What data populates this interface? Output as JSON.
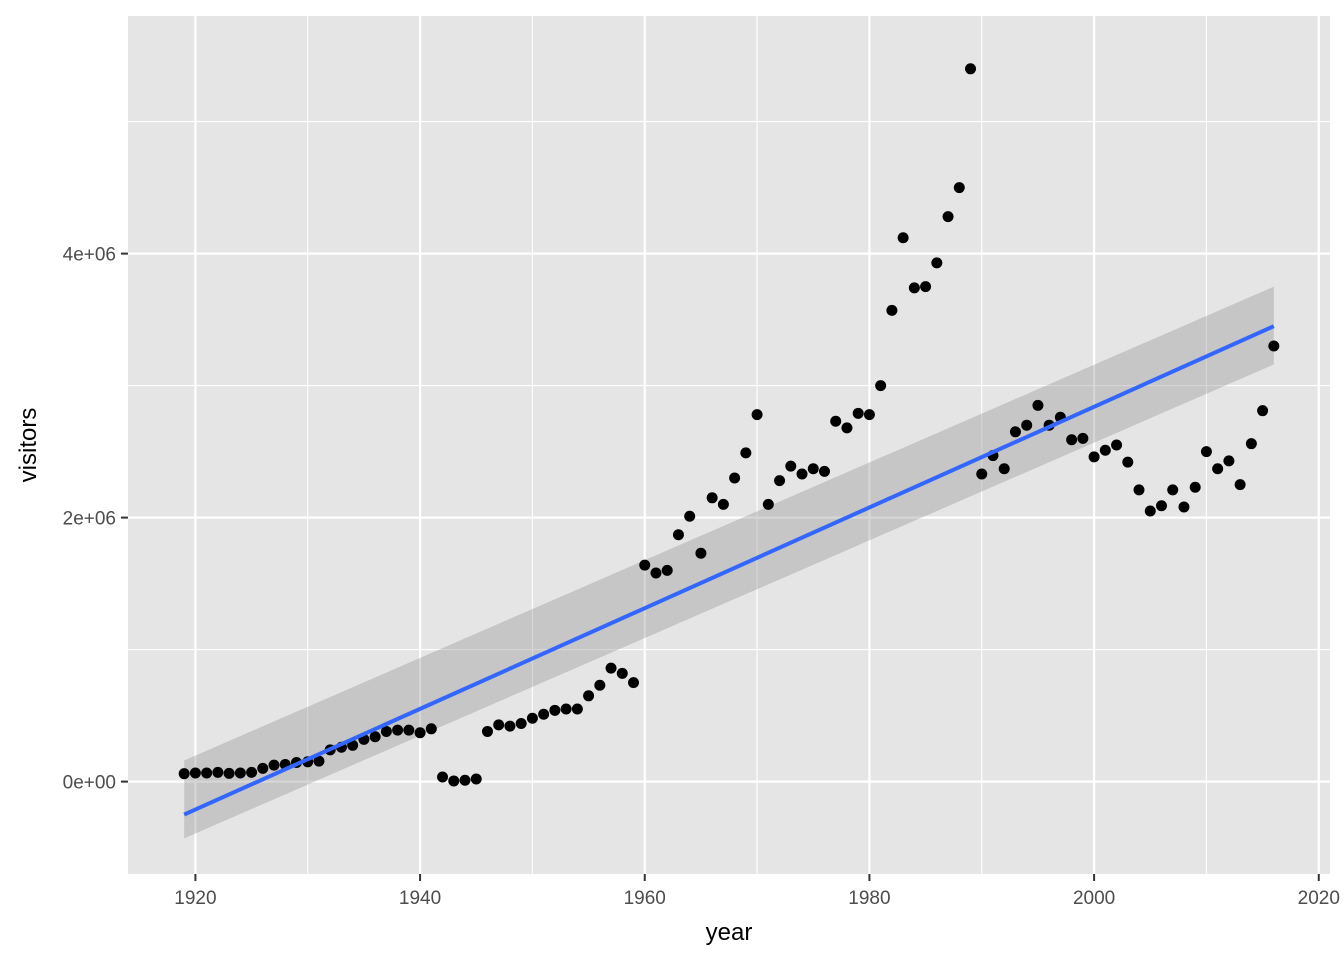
{
  "chart_data": {
    "type": "scatter",
    "title": "",
    "xlabel": "year",
    "ylabel": "visitors",
    "xlim": [
      1914,
      2021
    ],
    "ylim": [
      -700000,
      5800000
    ],
    "x_ticks": [
      1920,
      1940,
      1960,
      1980,
      2000,
      2020
    ],
    "x_tick_labels": [
      "1920",
      "1940",
      "1960",
      "1980",
      "2000",
      "2020"
    ],
    "y_ticks": [
      0,
      2000000,
      4000000
    ],
    "y_tick_labels": [
      "0e+00",
      "2e+06",
      "4e+06"
    ],
    "grid": true,
    "legend": "none",
    "colors": {
      "panel": "#e5e5e5",
      "grid": "#ffffff",
      "points": "#000000",
      "fit_line": "#3366ff",
      "ribbon": "#999999"
    },
    "x": [
      1919,
      1920,
      1921,
      1922,
      1923,
      1924,
      1925,
      1926,
      1927,
      1928,
      1929,
      1930,
      1931,
      1932,
      1933,
      1934,
      1935,
      1936,
      1937,
      1938,
      1939,
      1940,
      1941,
      1942,
      1943,
      1944,
      1945,
      1946,
      1947,
      1948,
      1949,
      1950,
      1951,
      1952,
      1953,
      1954,
      1955,
      1956,
      1957,
      1958,
      1959,
      1960,
      1961,
      1962,
      1963,
      1964,
      1965,
      1966,
      1967,
      1968,
      1969,
      1970,
      1971,
      1972,
      1973,
      1974,
      1975,
      1976,
      1977,
      1978,
      1979,
      1980,
      1981,
      1982,
      1983,
      1984,
      1985,
      1986,
      1987,
      1988,
      1989,
      1990,
      1991,
      1992,
      1993,
      1994,
      1995,
      1996,
      1997,
      1998,
      1999,
      2000,
      2001,
      2002,
      2003,
      2004,
      2005,
      2006,
      2007,
      2008,
      2009,
      2010,
      2011,
      2012,
      2013,
      2014,
      2015,
      2016
    ],
    "y": [
      60000,
      65000,
      65000,
      70000,
      62000,
      65000,
      70000,
      100000,
      125000,
      130000,
      145000,
      150000,
      155000,
      240000,
      260000,
      275000,
      320000,
      340000,
      380000,
      390000,
      390000,
      370000,
      400000,
      35000,
      5000,
      10000,
      20000,
      380000,
      430000,
      420000,
      440000,
      480000,
      510000,
      540000,
      550000,
      550000,
      650000,
      730000,
      860000,
      820000,
      750000,
      1640000,
      1580000,
      1600000,
      1870000,
      2010000,
      1730000,
      2150000,
      2100000,
      2300000,
      2490000,
      2780000,
      2100000,
      2280000,
      2390000,
      2330000,
      2370000,
      2350000,
      2730000,
      2680000,
      2790000,
      2780000,
      3000000,
      3570000,
      4120000,
      3740000,
      3750000,
      3930000,
      4280000,
      4500000,
      5400000,
      2330000,
      2470000,
      2370000,
      2650000,
      2700000,
      2850000,
      2700000,
      2760000,
      2590000,
      2600000,
      2460000,
      2510000,
      2550000,
      2420000,
      2210000,
      2050000,
      2090000,
      2210000,
      2080000,
      2230000,
      2500000,
      2370000,
      2430000,
      2250000,
      2560000,
      2810000,
      3300000
    ],
    "fit": {
      "method": "lm",
      "x": [
        1919,
        2016
      ],
      "y": [
        -250000,
        3450000
      ],
      "se_lower": [
        -430000,
        3160000
      ],
      "se_upper": [
        160000,
        3750000
      ]
    }
  }
}
